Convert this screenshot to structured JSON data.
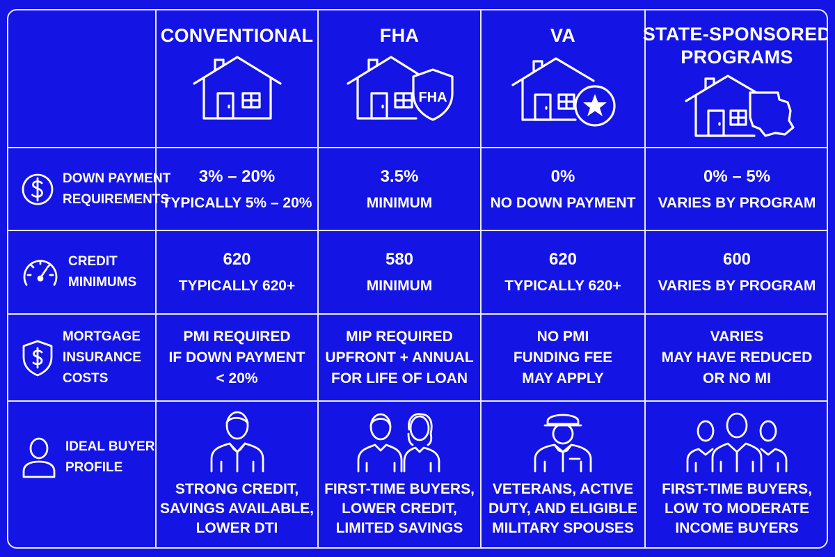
{
  "columns": [
    {
      "title": "CONVENTIONAL",
      "icon": "house-icon"
    },
    {
      "title": "FHA",
      "icon": "house-shield-icon",
      "badge": "FHA"
    },
    {
      "title": "VA",
      "icon": "house-star-icon"
    },
    {
      "title_lines": [
        "STATE-SPONSORED",
        "PROGRAMS"
      ],
      "icon": "house-state-map-icon"
    }
  ],
  "rows": [
    {
      "label_lines": [
        "DOWN PAYMENT",
        "REQUIREMENTS"
      ],
      "icon": "dollar-circle-icon",
      "cells": [
        {
          "main": "3% – 20%",
          "sub": "TYPICALLY 5% – 20%"
        },
        {
          "main": "3.5%",
          "sub": "MINIMUM"
        },
        {
          "main": "0%",
          "sub": "NO DOWN PAYMENT"
        },
        {
          "main": "0% – 5%",
          "sub": "VARIES BY PROGRAM"
        }
      ]
    },
    {
      "label_lines": [
        "CREDIT",
        "MINIMUMS"
      ],
      "icon": "gauge-icon",
      "cells": [
        {
          "main": "620",
          "sub": "TYPICALLY 620+"
        },
        {
          "main": "580",
          "sub": "MINIMUM"
        },
        {
          "main": "620",
          "sub": "TYPICALLY 620+"
        },
        {
          "main": "600",
          "sub": "VARIES BY PROGRAM"
        }
      ]
    },
    {
      "label_lines": [
        "MORTGAGE",
        "INSURANCE",
        "COSTS"
      ],
      "icon": "shield-dollar-icon",
      "cells": [
        {
          "lines": [
            "PMI REQUIRED",
            "IF DOWN PAYMENT",
            "< 20%"
          ]
        },
        {
          "lines": [
            "MIP REQUIRED",
            "UPFRONT + ANNUAL",
            "FOR LIFE OF LOAN"
          ]
        },
        {
          "lines": [
            "NO PMI",
            "FUNDING FEE",
            "MAY APPLY"
          ]
        },
        {
          "lines": [
            "VARIES",
            "MAY HAVE REDUCED",
            "OR NO MI"
          ]
        }
      ]
    },
    {
      "label_lines": [
        "IDEAL BUYER",
        "PROFILE"
      ],
      "icon": "person-icon",
      "cells": [
        {
          "icon": "man-icon",
          "lines": [
            "STRONG CREDIT,",
            "SAVINGS AVAILABLE,",
            "LOWER DTI"
          ]
        },
        {
          "icon": "couple-icon",
          "lines": [
            "FIRST-TIME BUYERS,",
            "LOWER CREDIT,",
            "LIMITED SAVINGS"
          ]
        },
        {
          "icon": "service-member-icon",
          "lines": [
            "VETERANS, ACTIVE",
            "DUTY, AND ELIGIBLE",
            "MILITARY SPOUSES"
          ]
        },
        {
          "icon": "group-icon",
          "lines": [
            "FIRST-TIME BUYERS,",
            "LOW TO MODERATE",
            "INCOME BUYERS"
          ]
        }
      ]
    }
  ],
  "colors": {
    "background": "#1414e4",
    "lines": "#e8ecff",
    "text": "#ffffff"
  }
}
